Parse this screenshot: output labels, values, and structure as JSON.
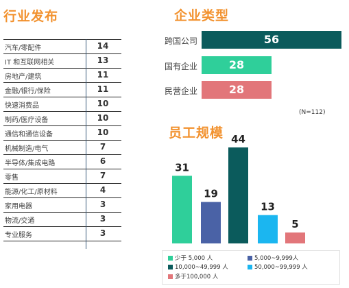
{
  "industry": {
    "title": "行业发布",
    "rows": [
      {
        "name": "汽车/零配件",
        "value": "14"
      },
      {
        "name": "IT 和互联网相关",
        "value": "13"
      },
      {
        "name": "房地产/建筑",
        "value": "11"
      },
      {
        "name": "金融/银行/保险",
        "value": "11"
      },
      {
        "name": "快速消费品",
        "value": "10"
      },
      {
        "name": "制药/医疗设备",
        "value": "10"
      },
      {
        "name": "通信和通信设备",
        "value": "10"
      },
      {
        "name": "机械制造/电气",
        "value": "7"
      },
      {
        "name": "半导体/集成电路",
        "value": "6"
      },
      {
        "name": "零售",
        "value": "7"
      },
      {
        "name": "能源/化工/原材料",
        "value": "4"
      },
      {
        "name": "家用电器",
        "value": "3"
      },
      {
        "name": "物流/交通",
        "value": "3"
      },
      {
        "name": "专业服务",
        "value": "3"
      }
    ]
  },
  "chart_data": [
    {
      "type": "bar",
      "orientation": "horizontal",
      "title": "企业类型",
      "categories": [
        "跨国公司",
        "国有企业",
        "民营企业"
      ],
      "values": [
        56,
        28,
        28
      ],
      "colors": [
        "#0b5b5c",
        "#2fcf9a",
        "#e2767a"
      ],
      "annotation": "(N=112)"
    },
    {
      "type": "bar",
      "title": "员工规模",
      "categories": [
        "少于 5,000 人",
        "5,000~9,999人",
        "10,000~49,999 人",
        "50,000~99,999 人",
        "多于100,000 人"
      ],
      "values": [
        31,
        19,
        44,
        13,
        5
      ],
      "colors": [
        "#2fcf9a",
        "#4a62a6",
        "#0b5b5c",
        "#1bb6f0",
        "#e2767a"
      ],
      "legend": "bottom"
    }
  ]
}
